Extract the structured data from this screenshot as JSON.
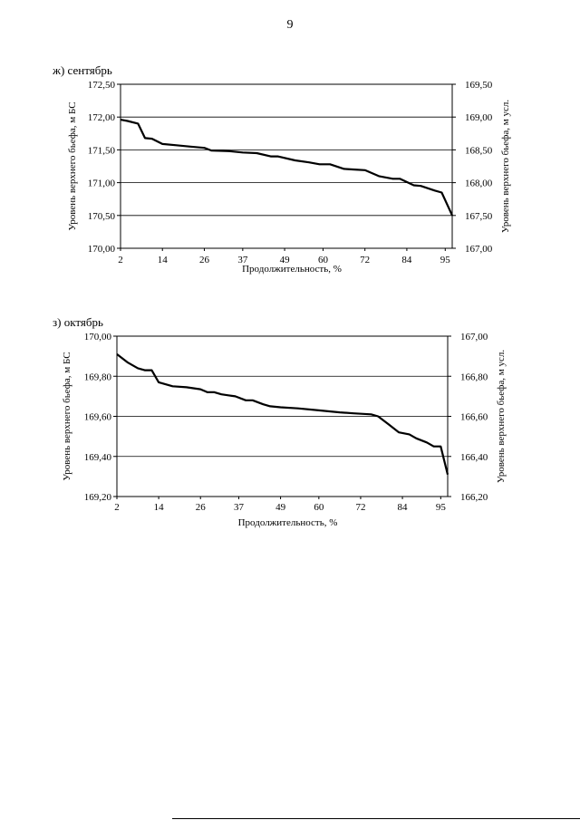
{
  "page_number": "9",
  "colors": {
    "line": "#000000",
    "grid": "#000000",
    "background": "#ffffff"
  },
  "chart_data": [
    {
      "type": "line",
      "title": "ж) сентябрь",
      "xlabel": "Продолжительность, %",
      "ylabel": "Уровень верхнего бьефа, м БС",
      "y2label": "Уровень верхнего бьефа, м  усл.",
      "x_ticks": [
        "2",
        "14",
        "26",
        "37",
        "49",
        "60",
        "72",
        "84",
        "95"
      ],
      "xlim": [
        2,
        97
      ],
      "ylim": [
        170.0,
        172.5
      ],
      "y_ticks": [
        "170,00",
        "170,50",
        "171,00",
        "171,50",
        "172,00",
        "172,50"
      ],
      "y2lim": [
        167.0,
        169.5
      ],
      "y2_ticks": [
        "167,00",
        "167,50",
        "168,00",
        "168,50",
        "169,00",
        "169,50"
      ],
      "grid": "horizontal",
      "series": [
        {
          "x": [
            2,
            4,
            7,
            9,
            11,
            14,
            18,
            22,
            26,
            28,
            33,
            37,
            41,
            45,
            47,
            52,
            56,
            59,
            62,
            66,
            69,
            72,
            76,
            80,
            82,
            86,
            88,
            92,
            94,
            97
          ],
          "y": [
            171.96,
            171.94,
            171.9,
            171.68,
            171.67,
            171.59,
            171.57,
            171.55,
            171.53,
            171.49,
            171.48,
            171.46,
            171.45,
            171.4,
            171.4,
            171.34,
            171.31,
            171.28,
            171.28,
            171.21,
            171.2,
            171.19,
            171.1,
            171.06,
            171.06,
            170.96,
            170.95,
            170.88,
            170.85,
            170.5
          ]
        }
      ]
    },
    {
      "type": "line",
      "title": "з) октябрь",
      "xlabel": "Продолжительность, %",
      "ylabel": "Уровень верхнего бьефа, м БС",
      "y2label": "Уровень верхнего бьефа, м  усл.",
      "x_ticks": [
        "2",
        "14",
        "26",
        "37",
        "49",
        "60",
        "72",
        "84",
        "95"
      ],
      "xlim": [
        2,
        97
      ],
      "ylim": [
        169.2,
        170.0
      ],
      "y_ticks": [
        "169,20",
        "169,40",
        "169,60",
        "169,80",
        "170,00"
      ],
      "y2lim": [
        166.2,
        167.0
      ],
      "y2_ticks": [
        "166,20",
        "166,40",
        "166,60",
        "166,80",
        "167,00"
      ],
      "grid": "horizontal",
      "series": [
        {
          "x": [
            2,
            5,
            8,
            10,
            12,
            14,
            18,
            22,
            26,
            28,
            30,
            32,
            34,
            36,
            39,
            41,
            44,
            46,
            49,
            54,
            60,
            66,
            70,
            75,
            77,
            80,
            83,
            86,
            88,
            91,
            93,
            95,
            97
          ],
          "y": [
            169.91,
            169.87,
            169.84,
            169.83,
            169.83,
            169.77,
            169.75,
            169.745,
            169.735,
            169.72,
            169.72,
            169.71,
            169.705,
            169.7,
            169.68,
            169.68,
            169.66,
            169.65,
            169.645,
            169.64,
            169.63,
            169.62,
            169.615,
            169.61,
            169.6,
            169.56,
            169.52,
            169.51,
            169.49,
            169.47,
            169.45,
            169.45,
            169.31
          ]
        }
      ]
    }
  ]
}
